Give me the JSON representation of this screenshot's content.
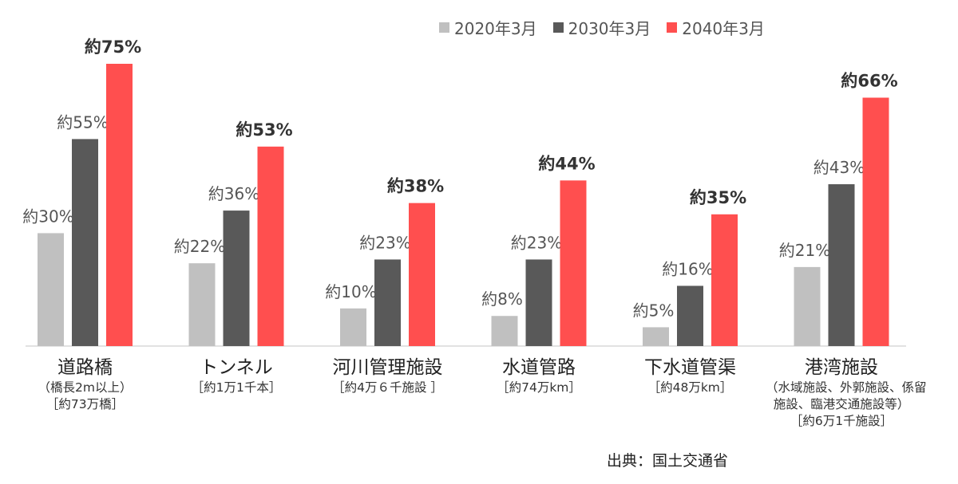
{
  "chart_data": {
    "type": "bar",
    "categories": [
      "道路橋",
      "トンネル",
      "河川管理施設",
      "水道管路",
      "下水道管渠",
      "港湾施設"
    ],
    "category_notes": [
      [
        "（橋長2m以上）",
        "［約73万橋］"
      ],
      [
        "［約1万1千本］"
      ],
      [
        "［約4万６千施設 ］"
      ],
      [
        "［約74万km］"
      ],
      [
        "［約48万km］"
      ],
      [
        "（水域施設、外郭施設、係留",
        "施設、臨港交通施設等）",
        "［約6万1千施設］"
      ]
    ],
    "series": [
      {
        "name": "2020年3月",
        "color": "#c0c0c0",
        "values": [
          30,
          22,
          10,
          8,
          5,
          21
        ],
        "labels": [
          "約30%",
          "約22%",
          "約10%",
          "約8%",
          "約5%",
          "約21%"
        ]
      },
      {
        "name": "2030年3月",
        "color": "#595959",
        "values": [
          55,
          36,
          23,
          23,
          16,
          43
        ],
        "labels": [
          "約55%",
          "約36%",
          "約23%",
          "約23%",
          "約16%",
          "約43%"
        ]
      },
      {
        "name": "2040年3月",
        "color": "#ff4f4f",
        "values": [
          75,
          53,
          38,
          44,
          35,
          66
        ],
        "labels": [
          "約75%",
          "約53%",
          "約38%",
          "約44%",
          "約35%",
          "約66%"
        ]
      }
    ],
    "ylim": [
      0,
      80
    ],
    "grid": false,
    "legend_position": "top-right"
  },
  "source": "出典：国土交通省"
}
